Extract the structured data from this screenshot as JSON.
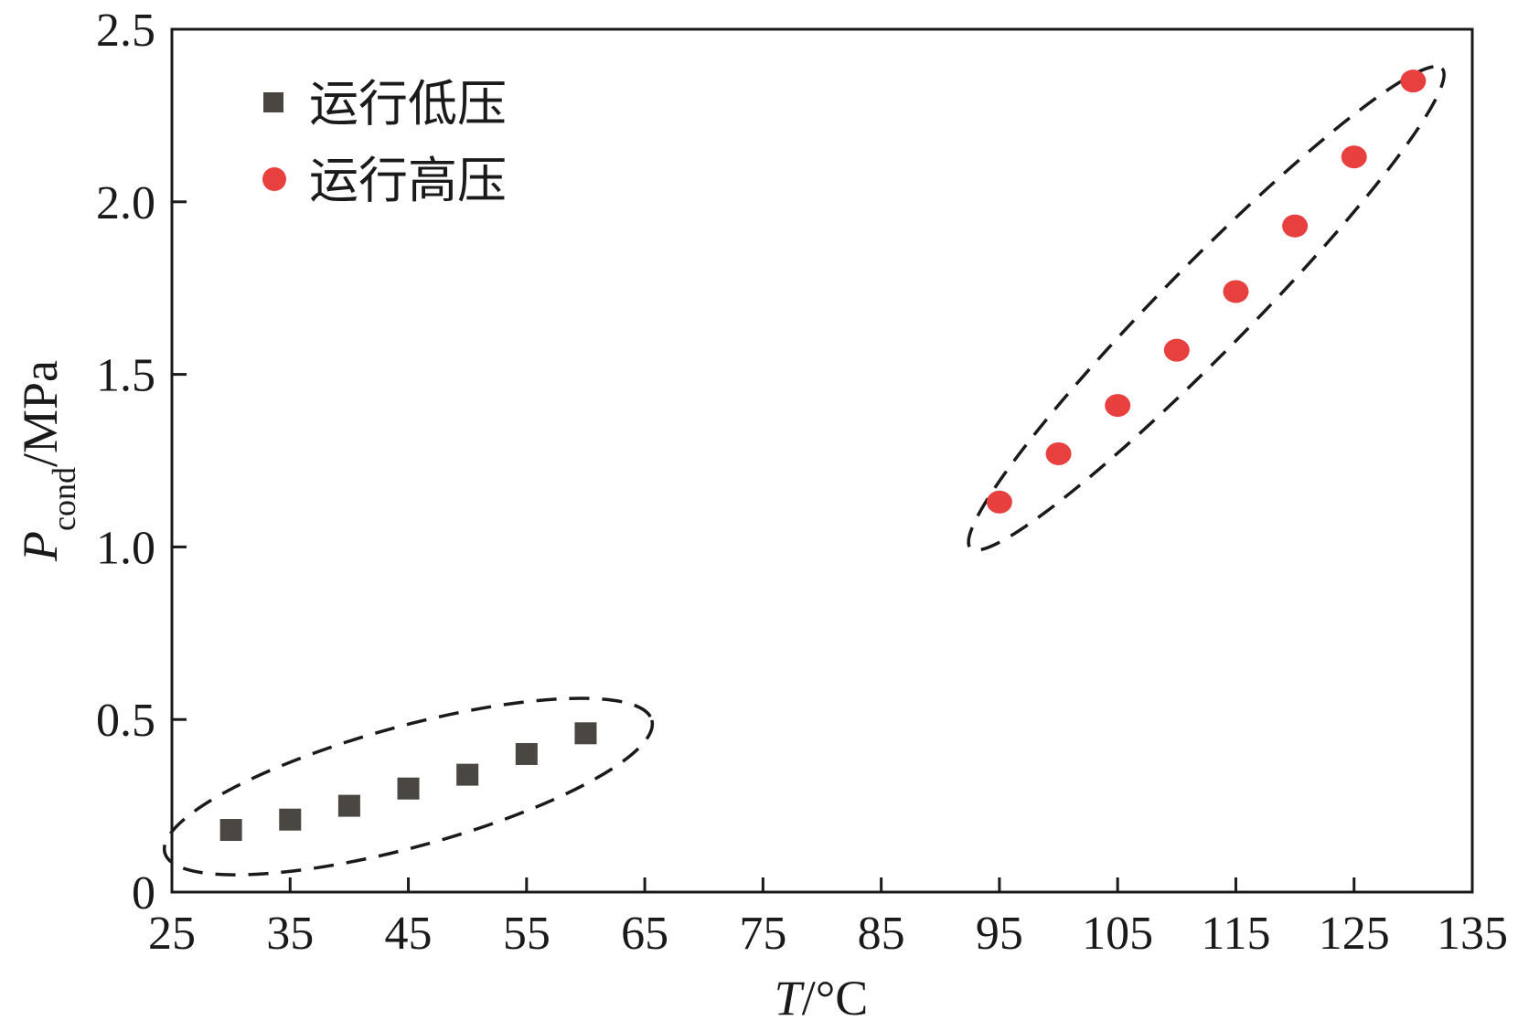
{
  "chart_data": {
    "type": "scatter",
    "xlabel_italic": "T",
    "xlabel_unit": "/°C",
    "ylabel_italic": "P",
    "ylabel_sub": "cond",
    "ylabel_unit": "/MPa",
    "xlim": [
      25,
      135
    ],
    "ylim": [
      0,
      2.5
    ],
    "xticks": [
      "25",
      "35",
      "45",
      "55",
      "65",
      "75",
      "85",
      "95",
      "105",
      "115",
      "125",
      "135"
    ],
    "yticks": [
      "0",
      "0.5",
      "1.0",
      "1.5",
      "2.0",
      "2.5"
    ],
    "legend_position": "top-left",
    "series": [
      {
        "name": "运行低压",
        "marker": "square",
        "color": "#4a4641",
        "x": [
          30,
          35,
          40,
          45,
          50,
          55,
          60
        ],
        "y": [
          0.18,
          0.21,
          0.25,
          0.3,
          0.34,
          0.4,
          0.46
        ]
      },
      {
        "name": "运行高压",
        "marker": "circle",
        "color": "#e8403f",
        "x": [
          95,
          100,
          105,
          110,
          115,
          120,
          125,
          130
        ],
        "y": [
          1.13,
          1.27,
          1.41,
          1.57,
          1.74,
          1.93,
          2.13,
          2.35
        ]
      }
    ],
    "annotations": [
      {
        "type": "dashed-ellipse",
        "encloses": "运行低压",
        "color": "#1a1a1a"
      },
      {
        "type": "dashed-ellipse",
        "encloses": "运行高压",
        "color": "#1a1a1a"
      }
    ]
  }
}
